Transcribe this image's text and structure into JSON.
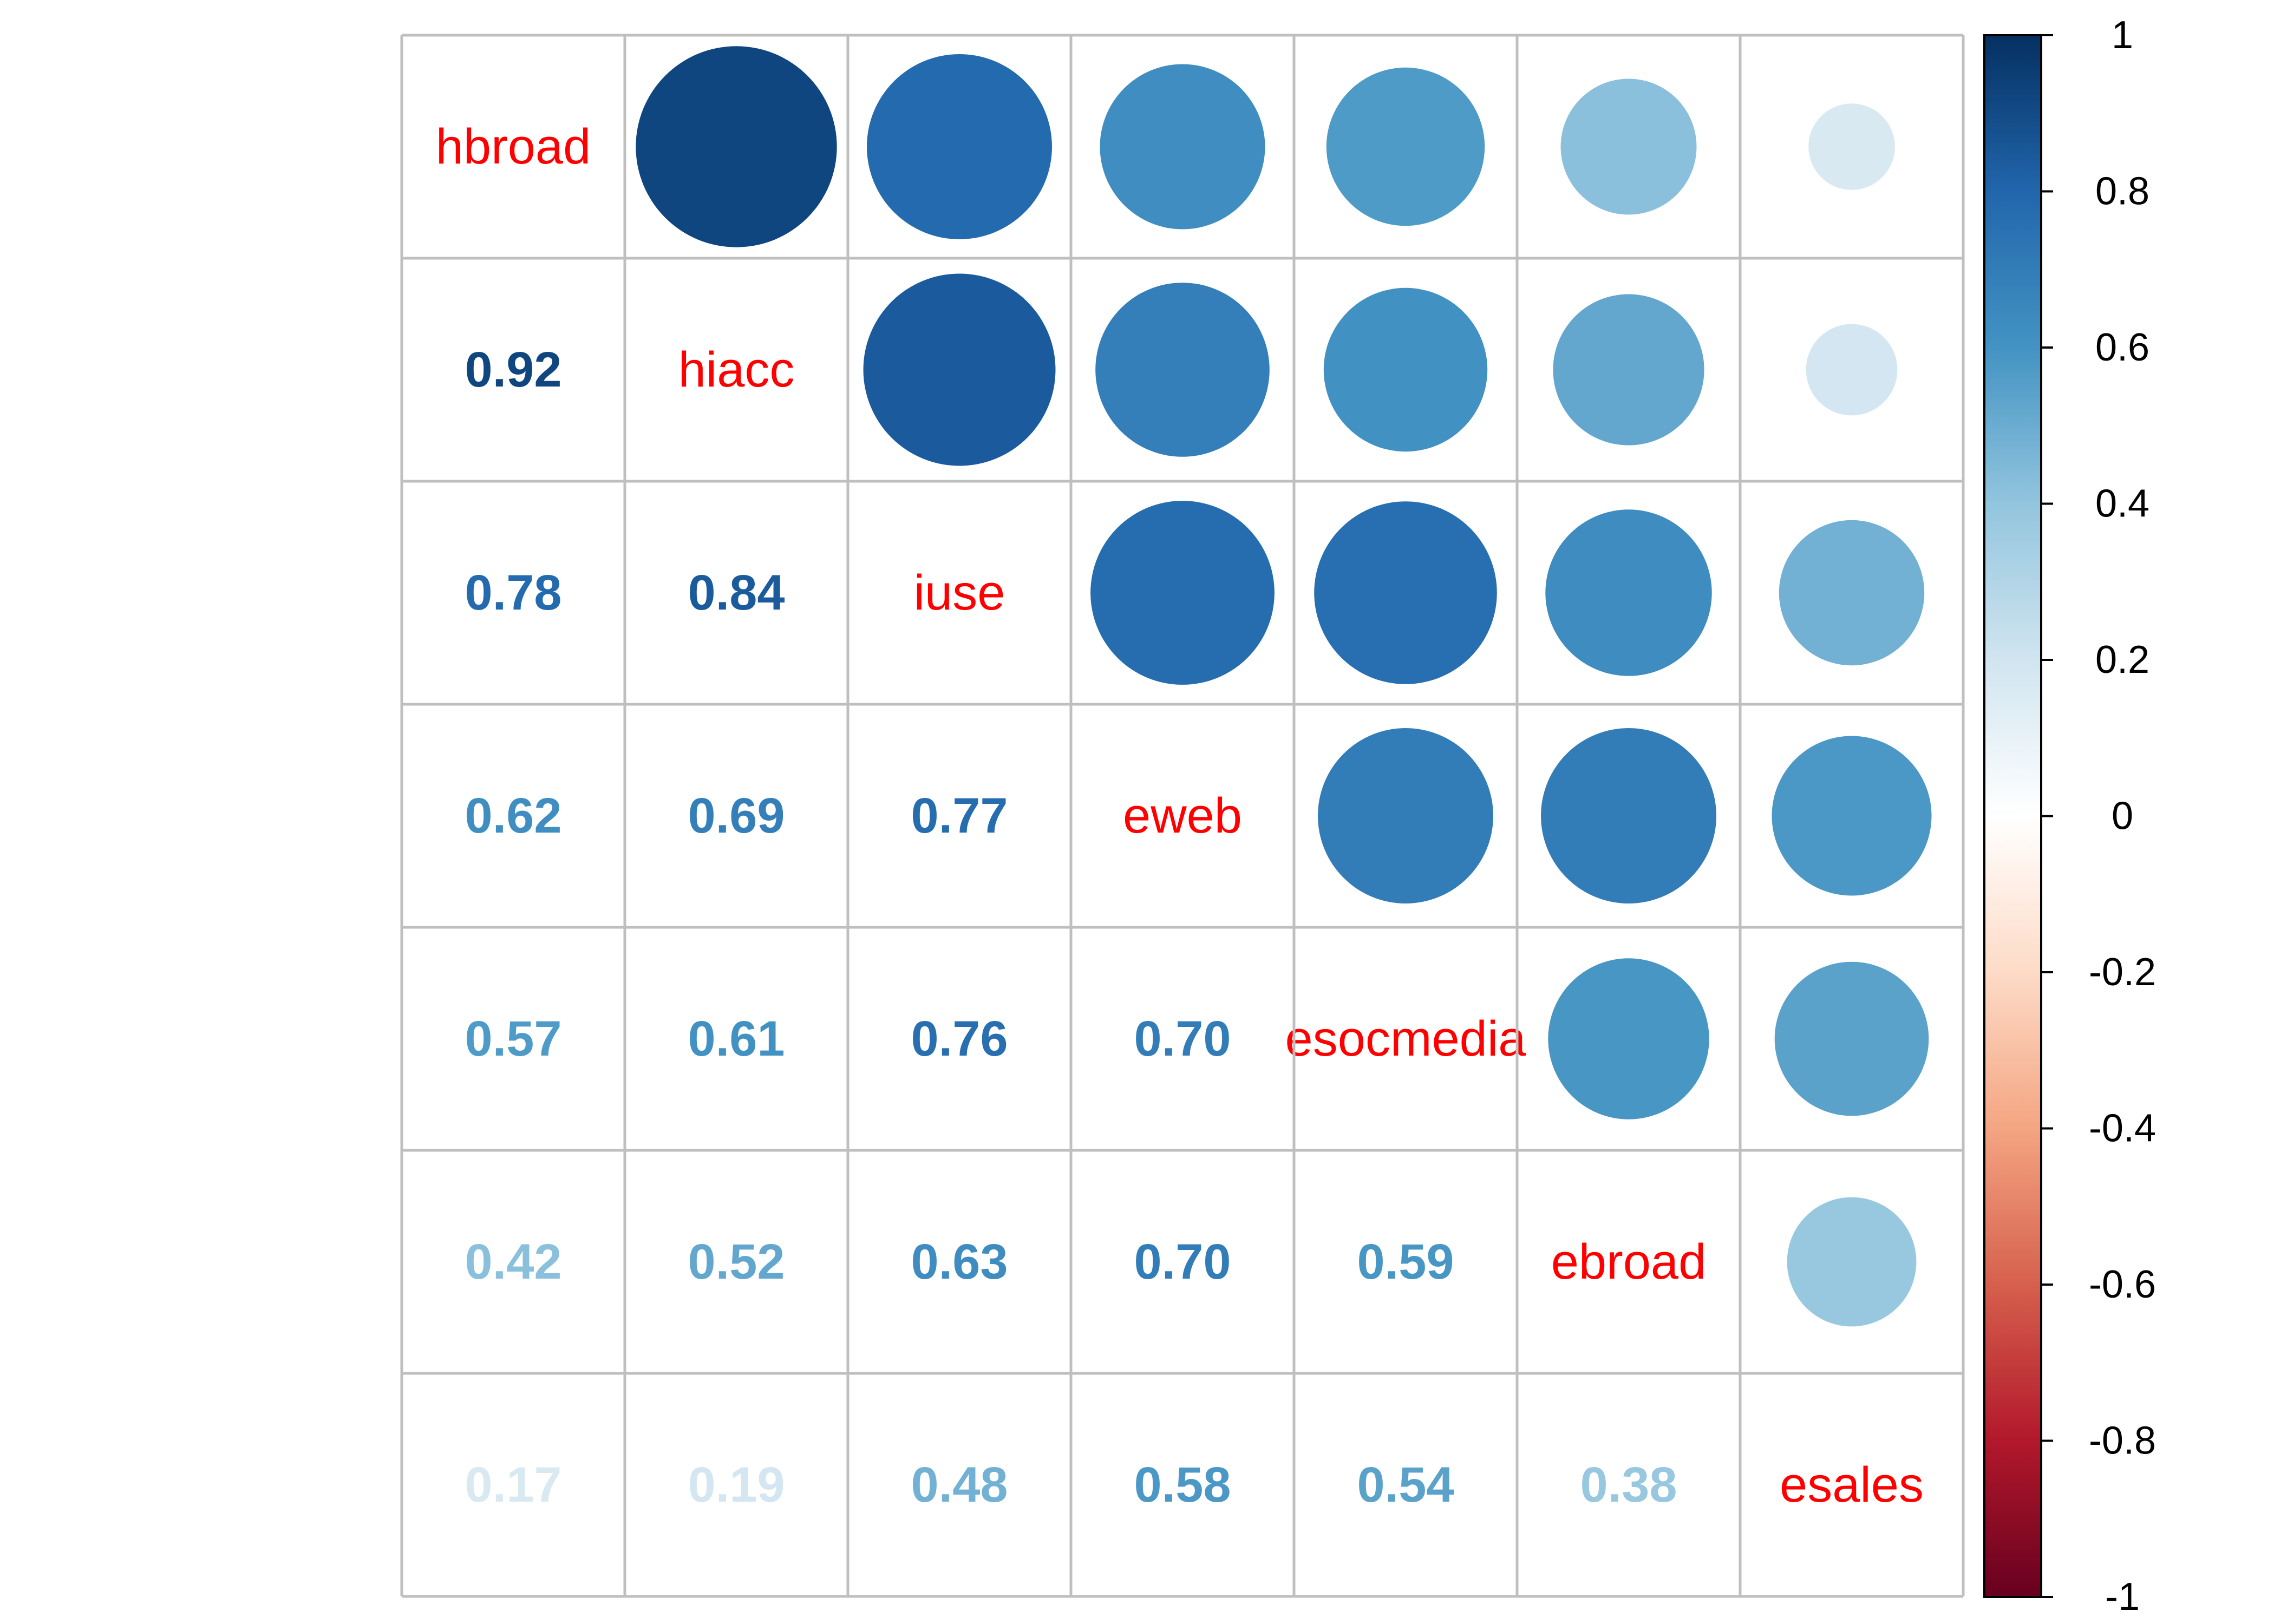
{
  "chart_data": {
    "type": "heatmap",
    "variables": [
      "hbroad",
      "hiacc",
      "iuse",
      "eweb",
      "esocmedia",
      "ebroad",
      "esales"
    ],
    "matrix": [
      [
        1.0,
        0.92,
        0.78,
        0.62,
        0.57,
        0.42,
        0.17
      ],
      [
        0.92,
        1.0,
        0.84,
        0.69,
        0.61,
        0.52,
        0.19
      ],
      [
        0.78,
        0.84,
        1.0,
        0.77,
        0.76,
        0.63,
        0.48
      ],
      [
        0.62,
        0.69,
        0.77,
        1.0,
        0.7,
        0.7,
        0.58
      ],
      [
        0.57,
        0.61,
        0.76,
        0.7,
        1.0,
        0.59,
        0.54
      ],
      [
        0.42,
        0.52,
        0.63,
        0.7,
        0.59,
        1.0,
        0.38
      ],
      [
        0.17,
        0.19,
        0.48,
        0.58,
        0.54,
        0.38,
        1.0
      ]
    ],
    "lower_triangle": "numbers",
    "upper_triangle": "circles",
    "diagonal": "variable-names",
    "colorbar": {
      "range": [
        -1,
        1
      ],
      "ticks": [
        "-1",
        "-0.8",
        "-0.6",
        "-0.4",
        "-0.2",
        "0",
        "0.2",
        "0.4",
        "0.6",
        "0.8",
        "1"
      ],
      "position": "right"
    },
    "colors": {
      "positive": "#053061",
      "neutral": "#FFFFFF",
      "negative": "#67001F",
      "diagonal_label": "#FF0000",
      "grid": "#BFBFBF"
    }
  }
}
